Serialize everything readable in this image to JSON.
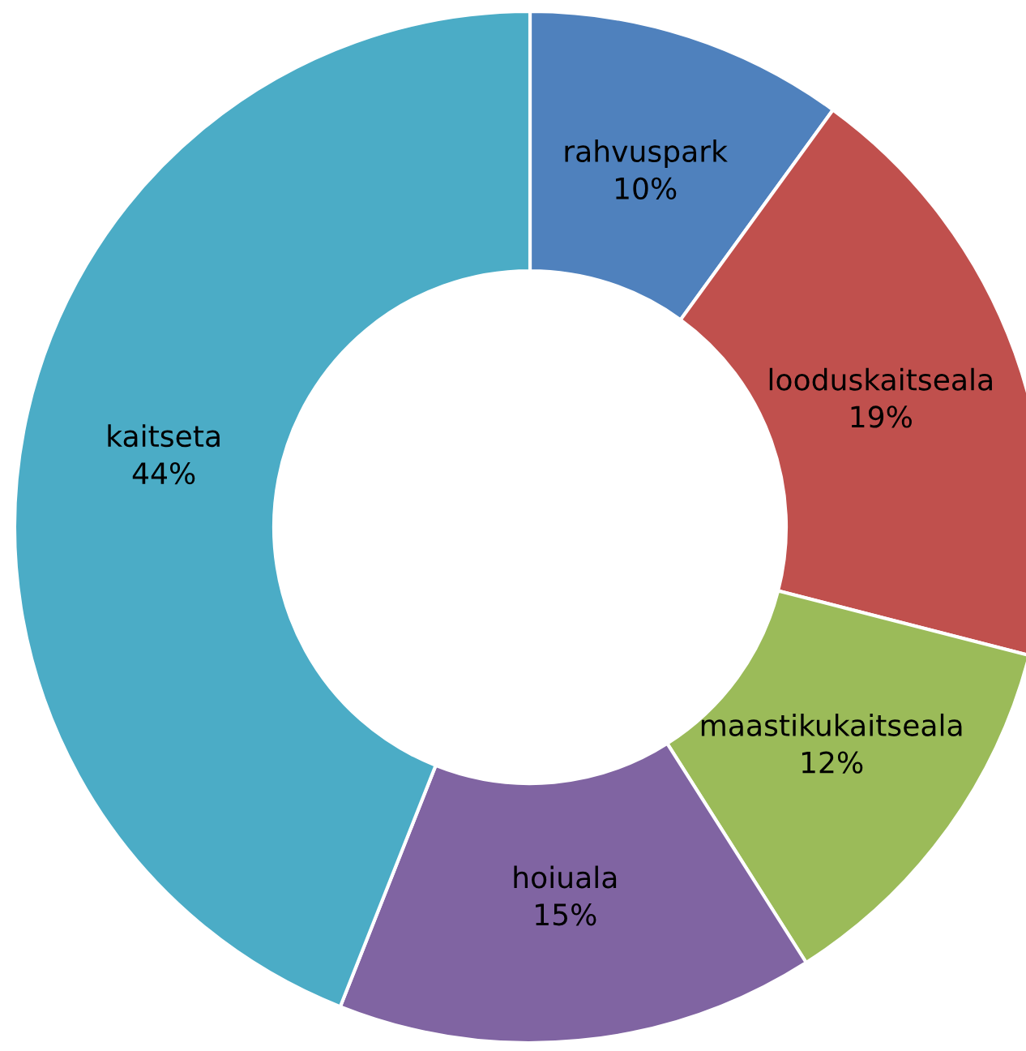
{
  "chart_data": {
    "type": "donut",
    "categories": [
      "rahvuspark",
      "looduskaitseala",
      "maastikukaitseala",
      "hoiuala",
      "kaitseta"
    ],
    "values": [
      10,
      19,
      12,
      15,
      44
    ],
    "colors": [
      "#4f81bd",
      "#c0504d",
      "#9bbb59",
      "#8064a2",
      "#4bacc6"
    ],
    "value_labels": [
      "10%",
      "19%",
      "12%",
      "15%",
      "44%"
    ]
  }
}
